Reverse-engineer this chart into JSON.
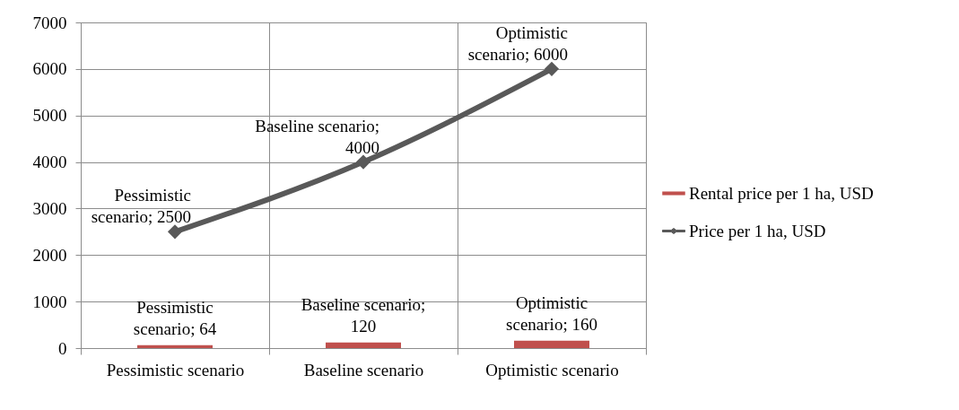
{
  "chart_data": {
    "type": "bar",
    "categories": [
      "Pessimistic scenario",
      "Baseline scenario",
      "Optimistic scenario"
    ],
    "series": [
      {
        "name": "Rental price per 1 ha, USD",
        "color": "#c0504d",
        "values": [
          64,
          120,
          160
        ],
        "value_labels": [
          "Pessimistic scenario; 64",
          "Baseline scenario; 120",
          "Optimistic scenario; 160"
        ]
      },
      {
        "name": "Price per 1 ha, USD",
        "type": "line",
        "color": "#595959",
        "values": [
          2500,
          4000,
          6000
        ],
        "value_labels": [
          "Pessimistic scenario; 2500",
          "Baseline scenario; 4000",
          "Optimistic scenario; 6000"
        ]
      }
    ],
    "ylim": [
      0,
      7000
    ],
    "yticks": [
      0,
      1000,
      2000,
      3000,
      4000,
      5000,
      6000,
      7000
    ],
    "grid": true,
    "legend": "right",
    "marker": "diamond"
  }
}
